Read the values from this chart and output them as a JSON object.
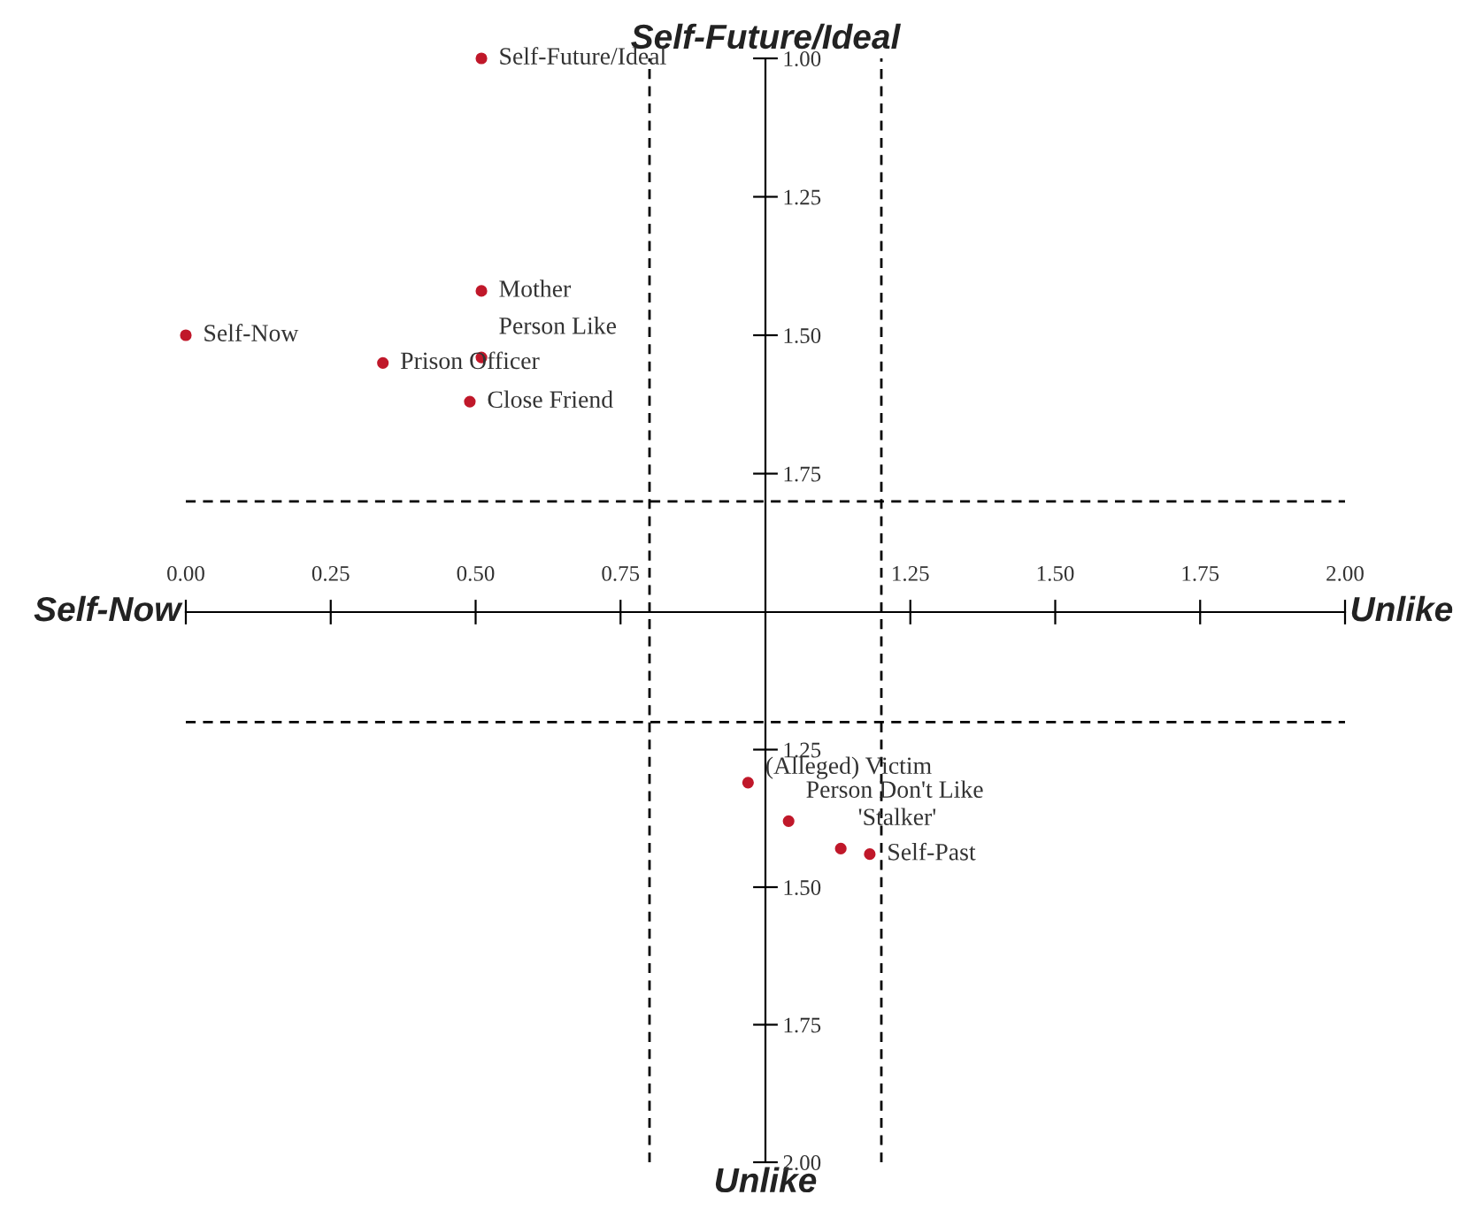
{
  "chart_data": [
    {
      "type": "scatter",
      "title": "Self-Future/Ideal",
      "series": [
        {
          "name": "Self-Future/Ideal",
          "color": "#c0182a",
          "x": [
            0.51
          ],
          "values": [
            1.0
          ]
        },
        {
          "name": "Mother",
          "color": "#c0182a",
          "x": [
            0.51
          ],
          "values": [
            1.42
          ]
        },
        {
          "name": "Person Like",
          "color": "#c0182a",
          "x": [
            0.51
          ],
          "values": [
            1.54
          ]
        },
        {
          "name": "Self-Now",
          "color": "#c0182a",
          "x": [
            0.0
          ],
          "values": [
            1.5
          ]
        },
        {
          "name": "Prison Officer",
          "color": "#c0182a",
          "x": [
            0.34
          ],
          "values": [
            1.55
          ]
        },
        {
          "name": "Close Friend",
          "color": "#c0182a",
          "x": [
            0.49
          ],
          "values": [
            1.62
          ]
        }
      ],
      "marker": "circle",
      "xlim": [
        0,
        2
      ],
      "xticks": [
        {
          "value": 0,
          "label": "0.00"
        },
        {
          "value": 0.25,
          "label": "0.25"
        },
        {
          "value": 0.5,
          "label": "0.50"
        },
        {
          "value": 0.75,
          "label": "0.75"
        },
        {
          "value": 1.25,
          "label": "1.25"
        },
        {
          "value": 1.5,
          "label": "1.50"
        },
        {
          "value": 1.75,
          "label": "1.75"
        },
        {
          "value": 2,
          "label": "2.00"
        }
      ],
      "ylim": [
        2.0,
        1.0
      ],
      "yticks": [
        {
          "value": 1,
          "label": "1.00"
        },
        {
          "value": 1.25,
          "label": "1.25"
        },
        {
          "value": 1.5,
          "label": "1.50"
        },
        {
          "value": 1.75,
          "label": "1.75"
        }
      ],
      "ref_lines": [
        {
          "axis": "x",
          "value": 0.8,
          "line_style": "dashed",
          "color": "#000000"
        },
        {
          "axis": "x",
          "value": 1.2,
          "line_style": "dashed",
          "color": "#000000"
        },
        {
          "axis": "y",
          "value": 1.8,
          "line_style": "dashed",
          "color": "#000000"
        }
      ],
      "annotations": [
        "Self-Now",
        "Unlike"
      ],
      "grid": false,
      "legend": false
    },
    {
      "type": "scatter",
      "xlabel": "Unlike",
      "series": [
        {
          "name": "(Alleged) Victim",
          "color": "#c0182a",
          "x": [
            0.97
          ],
          "values": [
            1.31
          ]
        },
        {
          "name": "Person Don't Like",
          "color": "#c0182a",
          "x": [
            1.04
          ],
          "values": [
            1.38
          ]
        },
        {
          "name": "'Stalker'",
          "color": "#c0182a",
          "x": [
            1.13
          ],
          "values": [
            1.43
          ]
        },
        {
          "name": "Self-Past",
          "color": "#c0182a",
          "x": [
            1.18
          ],
          "values": [
            1.44
          ]
        }
      ],
      "marker": "circle",
      "xlim": [
        0,
        2
      ],
      "ylim": [
        2.0,
        1.0
      ],
      "yticks": [
        {
          "value": 1.25,
          "label": "1.25"
        },
        {
          "value": 1.5,
          "label": "1.50"
        },
        {
          "value": 1.75,
          "label": "1.75"
        },
        {
          "value": 2,
          "label": "2.00"
        }
      ],
      "tick_labels": "y",
      "ref_lines": [
        {
          "axis": "x",
          "value": 0.8,
          "line_style": "dashed",
          "color": "#000000"
        },
        {
          "axis": "x",
          "value": 1.2,
          "line_style": "dashed",
          "color": "#000000"
        },
        {
          "axis": "y",
          "value": 1.2,
          "line_style": "dashed",
          "color": "#000000"
        }
      ],
      "grid": false,
      "legend": false
    }
  ]
}
